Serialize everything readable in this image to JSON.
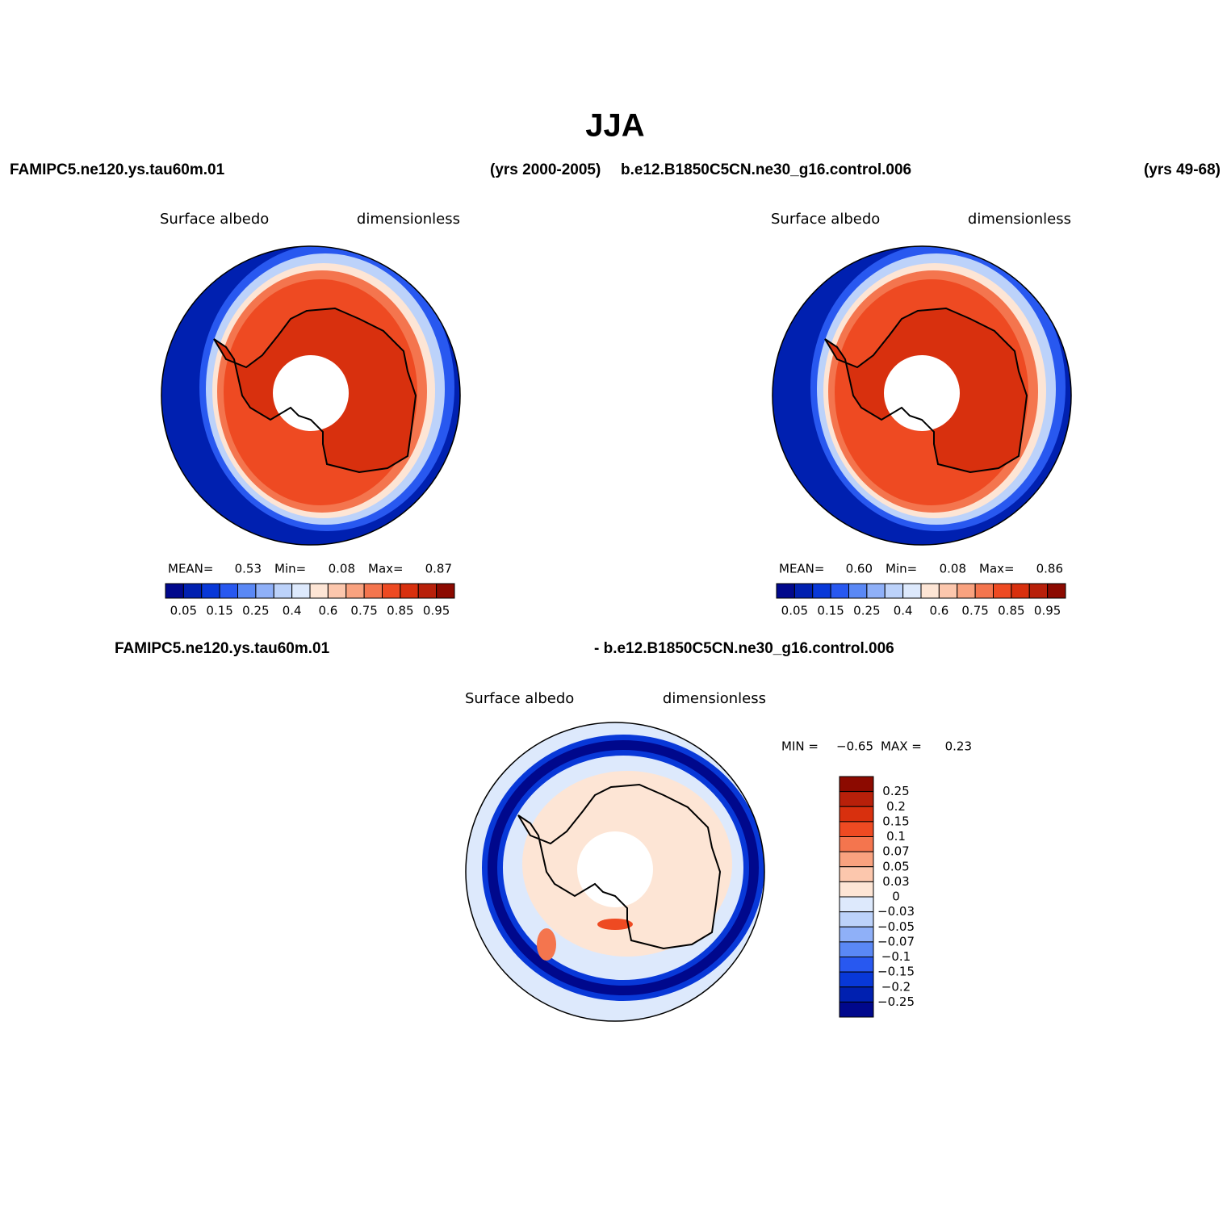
{
  "title": "JJA",
  "header": {
    "left_case": "FAMIPC5.ne120.ys.tau60m.01",
    "left_years": "(yrs 2000-2005)",
    "right_case": "b.e12.B1850C5CN.ne30_g16.control.006",
    "right_years": "(yrs 49-68)"
  },
  "panels": [
    {
      "variable": "Surface albedo",
      "units": "dimensionless",
      "stats": {
        "mean_label": "MEAN=",
        "mean": "0.53",
        "min_label": "Min=",
        "min": "0.08",
        "max_label": "Max=",
        "max": "0.87"
      },
      "colorbar": {
        "labels": [
          "0.05",
          "0.15",
          "0.25",
          "0.4",
          "0.6",
          "0.75",
          "0.85",
          "0.95"
        ],
        "colors": [
          "#00088c",
          "#0020b0",
          "#0838d8",
          "#2858f0",
          "#5a88f5",
          "#8fb0f8",
          "#bcd2fa",
          "#dde9fc",
          "#fde5d5",
          "#fcc7ad",
          "#f9a27f",
          "#f4754e",
          "#ee4a22",
          "#d8300e",
          "#b8200a",
          "#8c0a00"
        ]
      }
    },
    {
      "variable": "Surface albedo",
      "units": "dimensionless",
      "stats": {
        "mean_label": "MEAN=",
        "mean": "0.60",
        "min_label": "Min=",
        "min": "0.08",
        "max_label": "Max=",
        "max": "0.86"
      },
      "colorbar": {
        "labels": [
          "0.05",
          "0.15",
          "0.25",
          "0.4",
          "0.6",
          "0.75",
          "0.85",
          "0.95"
        ],
        "colors": [
          "#00088c",
          "#0020b0",
          "#0838d8",
          "#2858f0",
          "#5a88f5",
          "#8fb0f8",
          "#bcd2fa",
          "#dde9fc",
          "#fde5d5",
          "#fcc7ad",
          "#f9a27f",
          "#f4754e",
          "#ee4a22",
          "#d8300e",
          "#b8200a",
          "#8c0a00"
        ]
      }
    }
  ],
  "diff": {
    "case_a": "FAMIPC5.ne120.ys.tau60m.01",
    "case_b": "- b.e12.B1850C5CN.ne30_g16.control.006",
    "variable": "Surface albedo",
    "units": "dimensionless",
    "stats": {
      "min_label": "MIN =",
      "min": "−0.65",
      "max_label": "MAX =",
      "max": "0.23"
    },
    "colorbar": {
      "labels": [
        "0.25",
        "0.2",
        "0.15",
        "0.1",
        "0.07",
        "0.05",
        "0.03",
        "0",
        "−0.03",
        "−0.05",
        "−0.07",
        "−0.1",
        "−0.15",
        "−0.2",
        "−0.25"
      ],
      "colors": [
        "#8c0a00",
        "#b8200a",
        "#d8300e",
        "#ee4a22",
        "#f4754e",
        "#f9a27f",
        "#fcc7ad",
        "#fde5d5",
        "#dde9fc",
        "#bcd2fa",
        "#8fb0f8",
        "#5a88f5",
        "#2858f0",
        "#0838d8",
        "#0020b0",
        "#00088c"
      ]
    }
  }
}
